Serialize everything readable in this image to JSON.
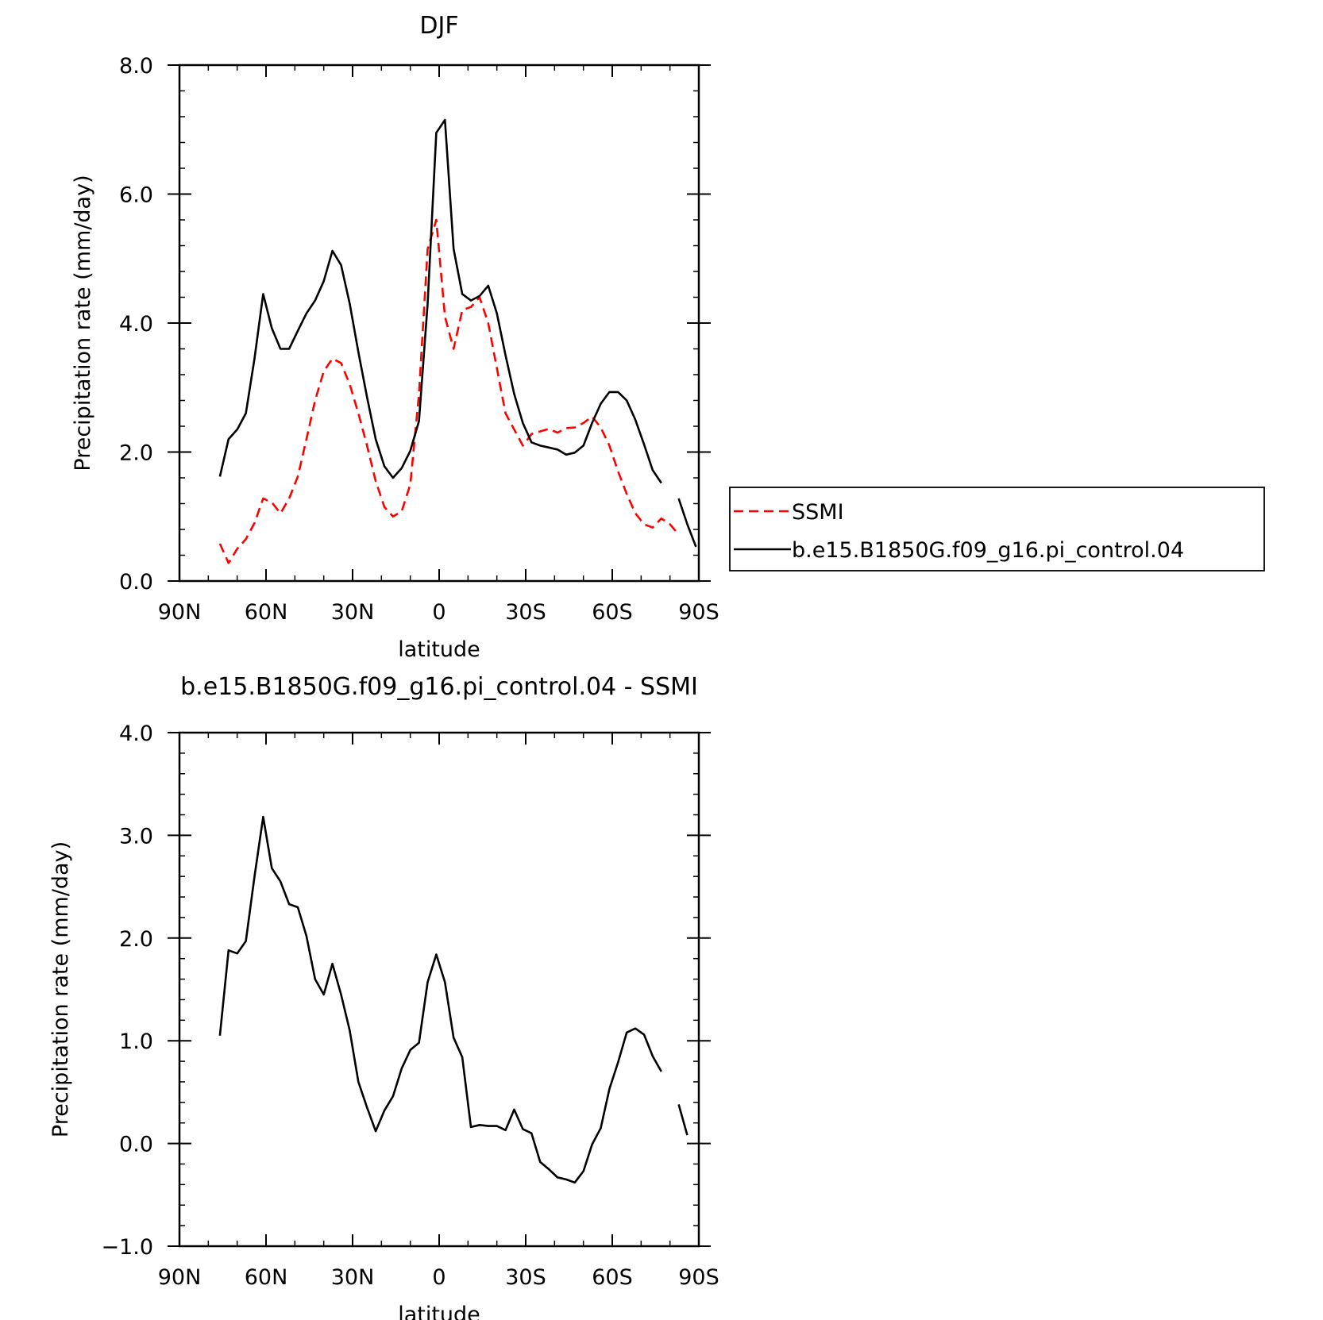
{
  "chart_data": [
    {
      "type": "line",
      "title": "DJF",
      "xlabel": "latitude",
      "ylabel": "Precipitation rate (mm/day)",
      "xlim": [
        90,
        -90
      ],
      "ylim": [
        0,
        8
      ],
      "x_ticks": [
        90,
        60,
        30,
        0,
        -30,
        -60,
        -90
      ],
      "x_tick_labels": [
        "90N",
        "60N",
        "30N",
        "0",
        "30S",
        "60S",
        "90S"
      ],
      "y_ticks": [
        0,
        2,
        4,
        6,
        8
      ],
      "y_tick_labels": [
        "0.0",
        "2.0",
        "4.0",
        "6.0",
        "8.0"
      ],
      "legend_position": "right",
      "series": [
        {
          "name": "SSMI",
          "color": "#ff0000",
          "dash": "dashed",
          "segments": [
            [
              [
                76,
                0.58
              ],
              [
                73,
                0.28
              ],
              [
                70,
                0.5
              ],
              [
                67,
                0.65
              ],
              [
                64,
                0.9
              ],
              [
                61,
                1.28
              ],
              [
                58,
                1.22
              ],
              [
                55,
                1.05
              ],
              [
                52,
                1.28
              ],
              [
                49,
                1.62
              ],
              [
                46,
                2.2
              ],
              [
                43,
                2.8
              ],
              [
                40,
                3.25
              ],
              [
                37,
                3.45
              ],
              [
                34,
                3.38
              ],
              [
                31,
                3.05
              ],
              [
                28,
                2.6
              ],
              [
                25,
                2.1
              ],
              [
                22,
                1.55
              ],
              [
                19,
                1.15
              ],
              [
                16,
                1.0
              ],
              [
                13,
                1.08
              ],
              [
                10,
                1.5
              ],
              [
                7,
                2.9
              ],
              [
                4,
                5.15
              ],
              [
                1,
                5.6
              ],
              [
                -2,
                4.1
              ],
              [
                -5,
                3.6
              ],
              [
                -8,
                4.2
              ],
              [
                -11,
                4.25
              ],
              [
                -14,
                4.4
              ],
              [
                -17,
                4.0
              ],
              [
                -20,
                3.3
              ],
              [
                -23,
                2.6
              ],
              [
                -26,
                2.35
              ],
              [
                -29,
                2.1
              ],
              [
                -32,
                2.28
              ],
              [
                -35,
                2.32
              ],
              [
                -38,
                2.36
              ],
              [
                -41,
                2.3
              ],
              [
                -44,
                2.37
              ],
              [
                -47,
                2.38
              ],
              [
                -50,
                2.45
              ],
              [
                -53,
                2.55
              ],
              [
                -56,
                2.38
              ],
              [
                -59,
                2.1
              ],
              [
                -62,
                1.7
              ],
              [
                -65,
                1.35
              ],
              [
                -68,
                1.05
              ],
              [
                -71,
                0.88
              ],
              [
                -74,
                0.83
              ],
              [
                -77,
                0.97
              ],
              [
                -80,
                0.88
              ],
              [
                -83,
                0.72
              ]
            ]
          ]
        },
        {
          "name": "b.e15.B1850G.f09_g16.pi_control.04",
          "color": "#000000",
          "dash": "solid",
          "segments": [
            [
              [
                76,
                1.62
              ],
              [
                73,
                2.2
              ],
              [
                70,
                2.35
              ],
              [
                67,
                2.6
              ],
              [
                64,
                3.45
              ],
              [
                61,
                4.45
              ],
              [
                58,
                3.92
              ],
              [
                55,
                3.6
              ],
              [
                52,
                3.6
              ],
              [
                49,
                3.88
              ],
              [
                46,
                4.15
              ],
              [
                43,
                4.35
              ],
              [
                40,
                4.65
              ],
              [
                37,
                5.12
              ],
              [
                34,
                4.9
              ],
              [
                31,
                4.3
              ],
              [
                28,
                3.55
              ],
              [
                25,
                2.85
              ],
              [
                22,
                2.2
              ],
              [
                19,
                1.78
              ],
              [
                16,
                1.6
              ],
              [
                13,
                1.75
              ],
              [
                10,
                2.02
              ],
              [
                7,
                2.48
              ],
              [
                4,
                4.3
              ],
              [
                1,
                6.95
              ],
              [
                -2,
                7.15
              ],
              [
                -5,
                5.15
              ],
              [
                -8,
                4.45
              ],
              [
                -11,
                4.35
              ],
              [
                -14,
                4.42
              ],
              [
                -17,
                4.58
              ],
              [
                -20,
                4.15
              ],
              [
                -23,
                3.5
              ],
              [
                -26,
                2.9
              ],
              [
                -29,
                2.45
              ],
              [
                -32,
                2.15
              ],
              [
                -35,
                2.1
              ],
              [
                -38,
                2.07
              ],
              [
                -41,
                2.04
              ],
              [
                -44,
                1.96
              ],
              [
                -47,
                1.99
              ],
              [
                -50,
                2.1
              ],
              [
                -53,
                2.45
              ],
              [
                -56,
                2.75
              ],
              [
                -59,
                2.93
              ],
              [
                -62,
                2.93
              ],
              [
                -65,
                2.8
              ],
              [
                -68,
                2.5
              ],
              [
                -71,
                2.12
              ],
              [
                -74,
                1.72
              ],
              [
                -77,
                1.52
              ]
            ],
            [
              [
                -83,
                1.28
              ],
              [
                -86,
                0.88
              ],
              [
                -89,
                0.53
              ]
            ]
          ]
        }
      ]
    },
    {
      "type": "line",
      "title": "b.e15.B1850G.f09_g16.pi_control.04 - SSMI",
      "xlabel": "latitude",
      "ylabel": "Precipitation rate (mm/day)",
      "xlim": [
        90,
        -90
      ],
      "ylim": [
        -1,
        4
      ],
      "x_ticks": [
        90,
        60,
        30,
        0,
        -30,
        -60,
        -90
      ],
      "x_tick_labels": [
        "90N",
        "60N",
        "30N",
        "0",
        "30S",
        "60S",
        "90S"
      ],
      "y_ticks": [
        -1,
        0,
        1,
        2,
        3,
        4
      ],
      "y_tick_labels": [
        "−1.0",
        "0.0",
        "1.0",
        "2.0",
        "3.0",
        "4.0"
      ],
      "series": [
        {
          "color": "#000000",
          "dash": "solid",
          "segments": [
            [
              [
                76,
                1.05
              ],
              [
                73,
                1.88
              ],
              [
                70,
                1.85
              ],
              [
                67,
                1.97
              ],
              [
                64,
                2.6
              ],
              [
                61,
                3.18
              ],
              [
                58,
                2.68
              ],
              [
                55,
                2.55
              ],
              [
                52,
                2.33
              ],
              [
                49,
                2.3
              ],
              [
                46,
                2.02
              ],
              [
                43,
                1.6
              ],
              [
                40,
                1.45
              ],
              [
                37,
                1.75
              ],
              [
                34,
                1.45
              ],
              [
                31,
                1.1
              ],
              [
                28,
                0.6
              ],
              [
                25,
                0.35
              ],
              [
                22,
                0.12
              ],
              [
                19,
                0.32
              ],
              [
                16,
                0.46
              ],
              [
                13,
                0.73
              ],
              [
                10,
                0.91
              ],
              [
                7,
                0.98
              ],
              [
                4,
                1.57
              ],
              [
                1,
                1.84
              ],
              [
                -2,
                1.57
              ],
              [
                -5,
                1.03
              ],
              [
                -8,
                0.84
              ],
              [
                -11,
                0.16
              ],
              [
                -14,
                0.18
              ],
              [
                -17,
                0.17
              ],
              [
                -20,
                0.17
              ],
              [
                -23,
                0.13
              ],
              [
                -26,
                0.33
              ],
              [
                -29,
                0.14
              ],
              [
                -32,
                0.1
              ],
              [
                -35,
                -0.18
              ],
              [
                -38,
                -0.25
              ],
              [
                -41,
                -0.33
              ],
              [
                -44,
                -0.35
              ],
              [
                -47,
                -0.38
              ],
              [
                -50,
                -0.27
              ],
              [
                -53,
                -0.01
              ],
              [
                -56,
                0.15
              ],
              [
                -59,
                0.53
              ],
              [
                -62,
                0.79
              ],
              [
                -65,
                1.08
              ],
              [
                -68,
                1.12
              ],
              [
                -71,
                1.06
              ],
              [
                -74,
                0.85
              ],
              [
                -77,
                0.7
              ]
            ],
            [
              [
                -83,
                0.38
              ],
              [
                -86,
                0.08
              ]
            ]
          ]
        }
      ]
    }
  ]
}
